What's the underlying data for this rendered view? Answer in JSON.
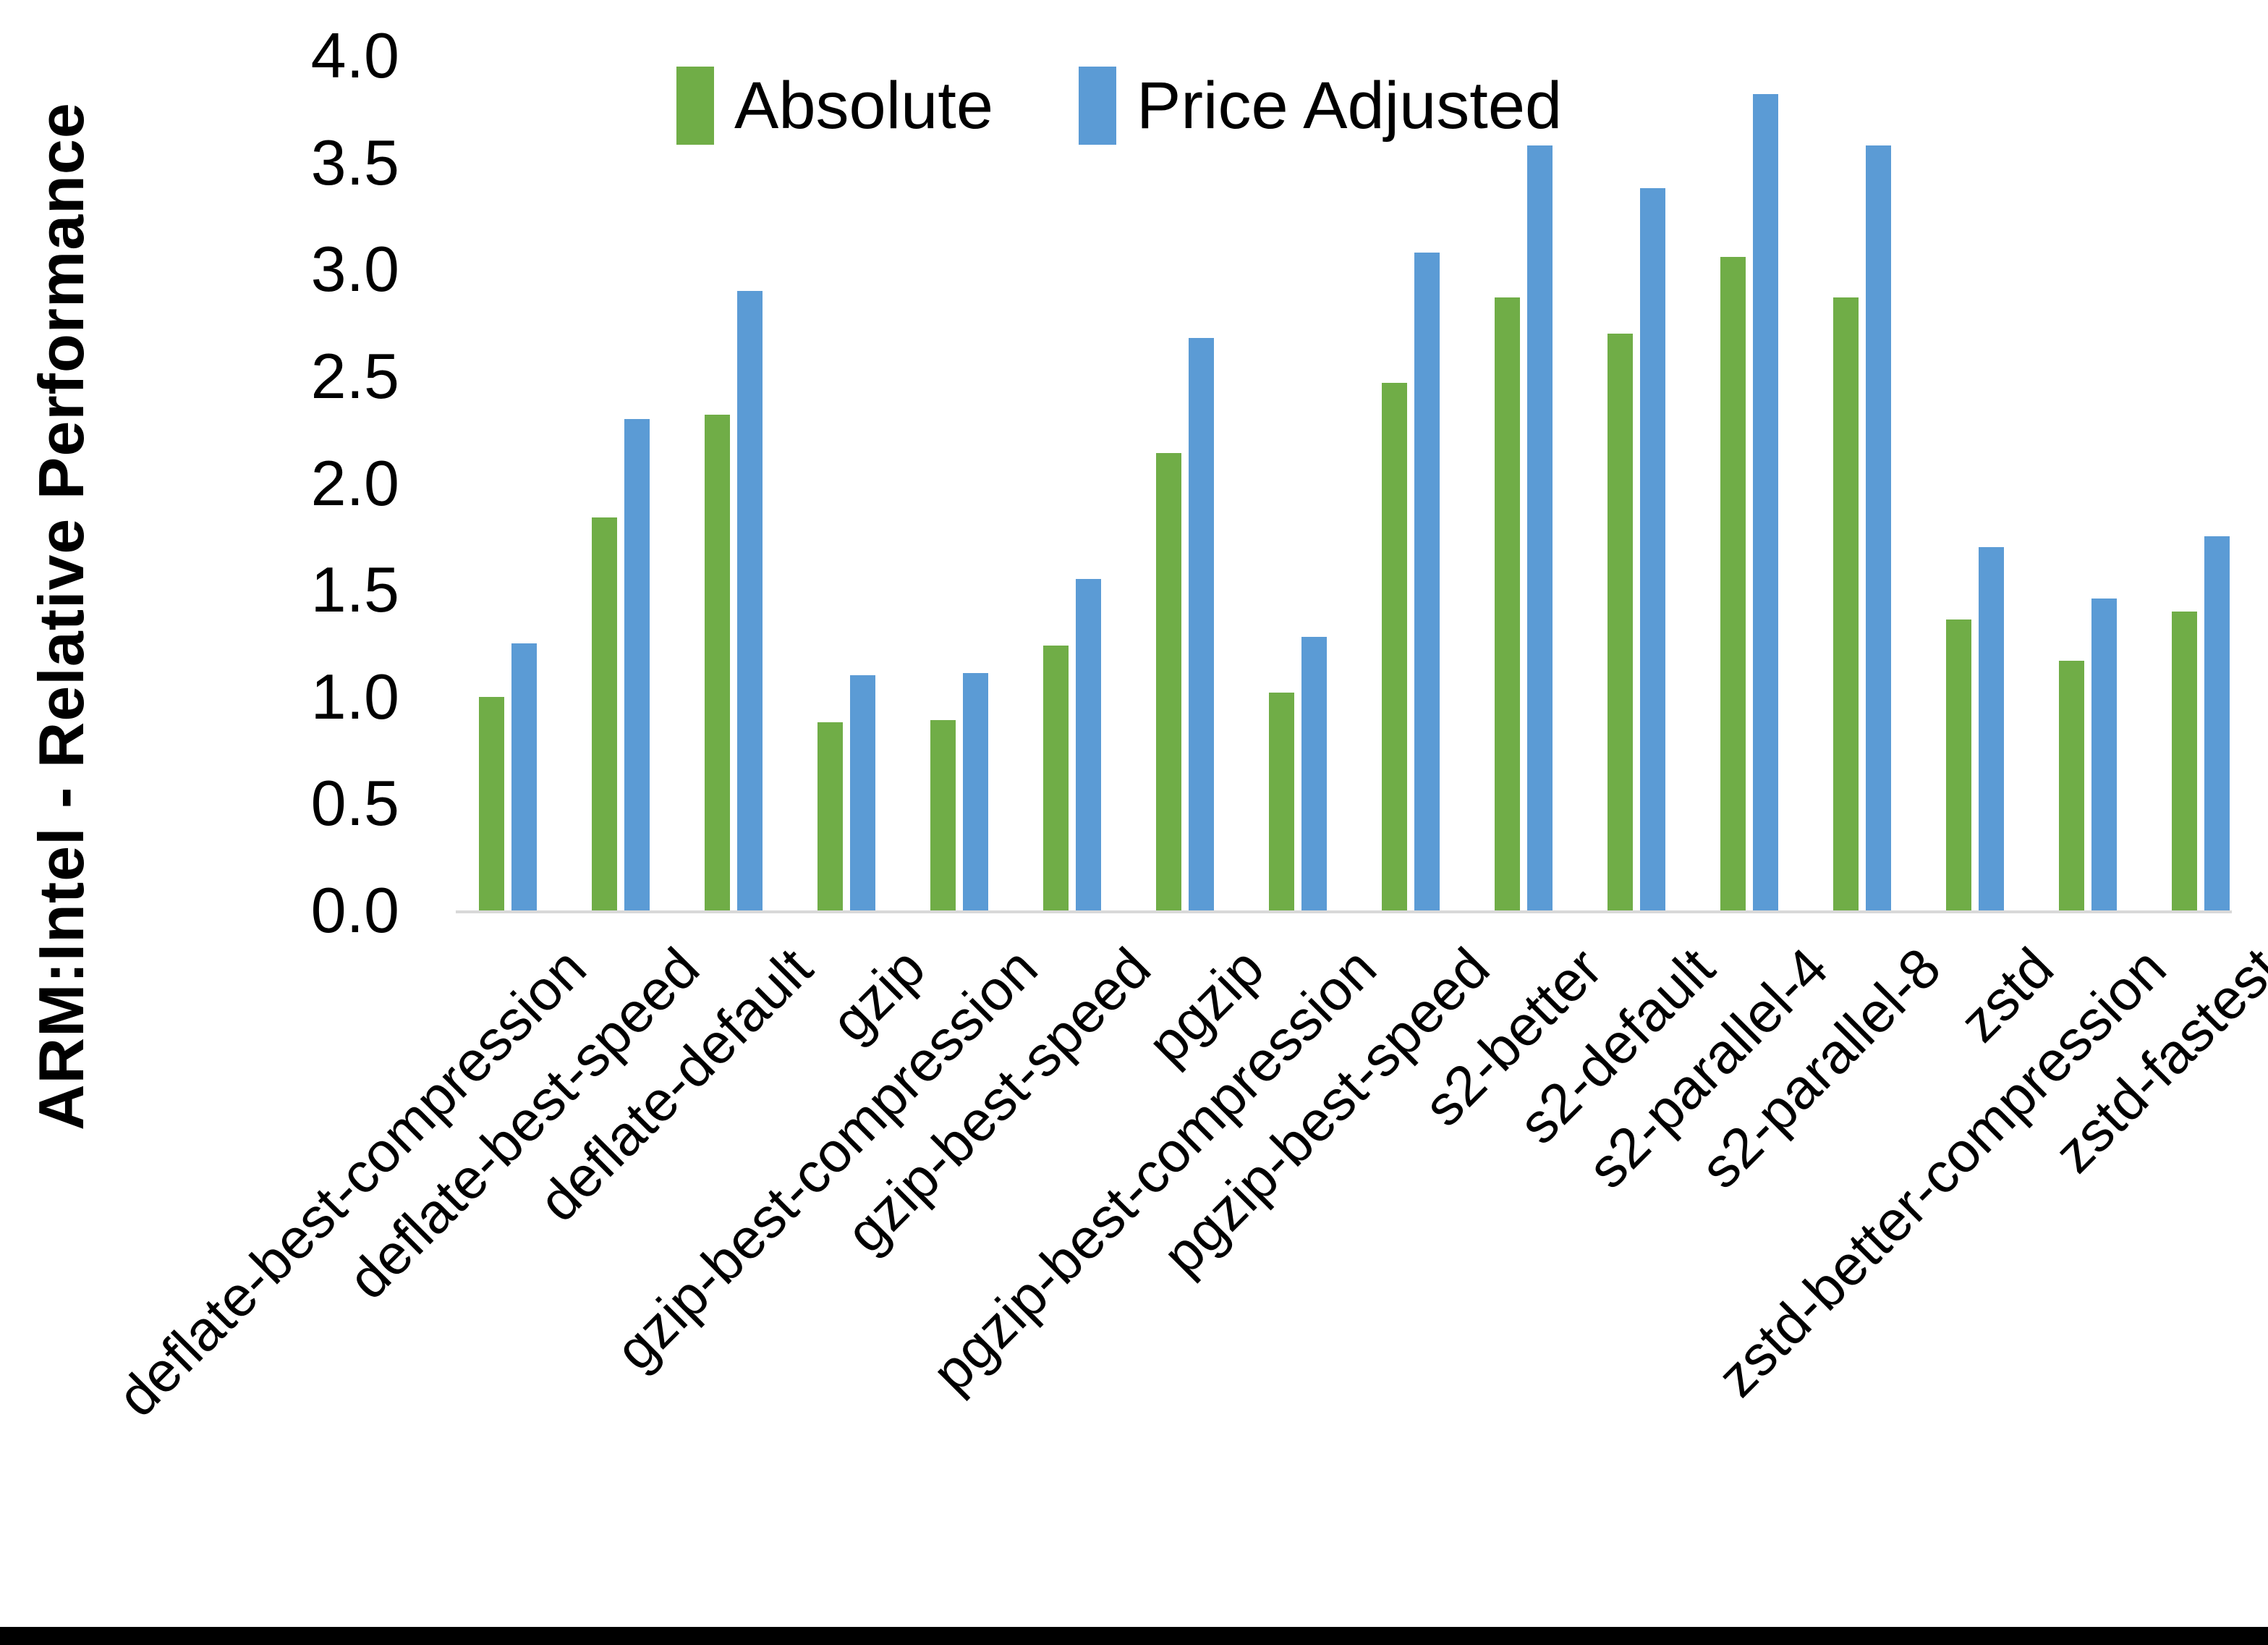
{
  "chart_data": {
    "type": "bar",
    "title": "",
    "xlabel": "",
    "ylabel": "ARM:Intel - Relative Performance",
    "ylim": [
      0.0,
      4.0
    ],
    "ytick_step": 0.5,
    "yticks": [
      "0.0",
      "0.5",
      "1.0",
      "1.5",
      "2.0",
      "2.5",
      "3.0",
      "3.5",
      "4.0"
    ],
    "grid": false,
    "legend_position": "top-center",
    "axis_color": "#D9D9D9",
    "frame_bottom_color": "#000000",
    "categories": [
      "deflate-best-compression",
      "deflate-best-speed",
      "deflate-default",
      "gzip",
      "gzip-best-compression",
      "gzip-best-speed",
      "pgzip",
      "pgzip-best-compression",
      "pgzip-best-speed",
      "s2-better",
      "s2-default",
      "s2-parallel-4",
      "s2-parallel-8",
      "zstd",
      "zstd-better-compression",
      "zstd-fastest"
    ],
    "series": [
      {
        "name": "Absolute",
        "color": "#70AD47",
        "values": [
          1.0,
          1.84,
          2.32,
          0.88,
          0.89,
          1.24,
          2.14,
          1.02,
          2.47,
          2.87,
          2.7,
          3.06,
          2.87,
          1.36,
          1.17,
          1.4
        ]
      },
      {
        "name": "Price Adjusted",
        "color": "#5B9BD5",
        "values": [
          1.25,
          2.3,
          2.9,
          1.1,
          1.11,
          1.55,
          2.68,
          1.28,
          3.08,
          3.58,
          3.38,
          3.82,
          3.58,
          1.7,
          1.46,
          1.75
        ]
      }
    ]
  }
}
